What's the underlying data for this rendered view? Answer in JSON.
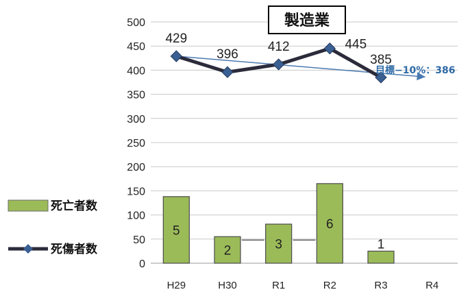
{
  "chart_data": {
    "type": "bar",
    "title": "製造業",
    "categories": [
      "H29",
      "H30",
      "R1",
      "R2",
      "R3",
      "R4"
    ],
    "ylim": [
      0,
      500
    ],
    "yticks": [
      0,
      50,
      100,
      150,
      200,
      250,
      300,
      350,
      400,
      450,
      500
    ],
    "grid": true,
    "legend_position": "left",
    "series": [
      {
        "name": "死亡者数",
        "type": "bar",
        "color": "#9bbb59",
        "values": [
          138,
          55,
          81,
          165,
          25,
          null
        ],
        "labels": [
          "5",
          "2",
          "3",
          "6",
          "1",
          ""
        ]
      },
      {
        "name": "死傷者数",
        "type": "line",
        "color": "#2b2b3b",
        "marker": "diamond",
        "marker_color": "#3a5f93",
        "values": [
          429,
          396,
          412,
          445,
          385,
          null
        ],
        "labels": [
          "429",
          "396",
          "412",
          "445",
          "385",
          ""
        ]
      }
    ],
    "target": {
      "label": "目標−10%：386",
      "from": {
        "x": "H29",
        "y": 429
      },
      "to": {
        "x": "R4",
        "y": 386
      },
      "color": "#4a79b0"
    },
    "extras": {
      "small_lines": [
        {
          "x_from": "H30",
          "x_to": "R1",
          "y": 48
        },
        {
          "x_from": "R1",
          "x_to": "R2",
          "y": 48
        }
      ]
    }
  }
}
